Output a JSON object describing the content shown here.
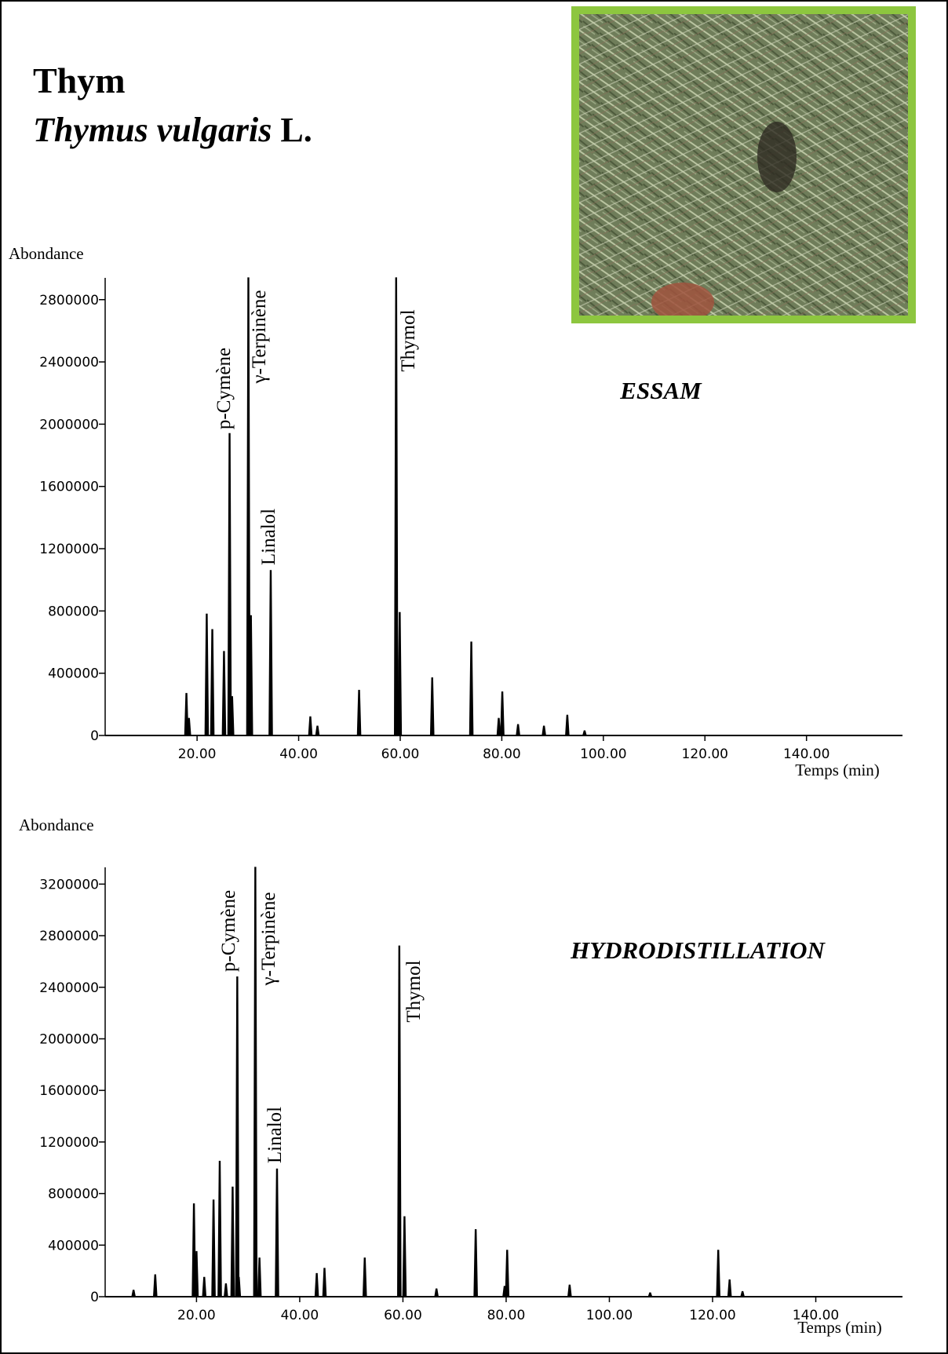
{
  "header": {
    "title": "Thym",
    "species": "Thymus vulgaris",
    "authority": "L."
  },
  "chart_data": [
    {
      "type": "peak",
      "method": "ESSAM",
      "y_label": "Abondance",
      "x_label": "Temps (min)",
      "color": "#000000",
      "annotations": [
        "p-Cymène",
        "γ-Terpinène",
        "Linalol",
        "Thymol"
      ],
      "x": [
        17.9,
        18.4,
        21.9,
        23.0,
        25.3,
        26.4,
        26.9,
        30.1,
        30.6,
        34.5,
        42.3,
        43.7,
        51.9,
        59.2,
        59.9,
        66.3,
        74.0,
        79.4,
        80.1,
        83.2,
        88.3,
        92.9,
        96.3
      ],
      "values": [
        270000,
        110000,
        780000,
        680000,
        540000,
        1940000,
        250000,
        2940000,
        770000,
        1060000,
        120000,
        60000,
        290000,
        2940000,
        790000,
        370000,
        600000,
        110000,
        280000,
        70000,
        60000,
        130000,
        30000
      ],
      "xlim": [
        1.9,
        158.9
      ],
      "ylim": [
        0,
        2940000
      ],
      "xticks": [
        {
          "value": 20,
          "label": "20.00"
        },
        {
          "value": 40,
          "label": "40.00"
        },
        {
          "value": 60,
          "label": "60.00"
        },
        {
          "value": 80,
          "label": "80.00"
        },
        {
          "value": 100,
          "label": "100.00"
        },
        {
          "value": 120,
          "label": "120.00"
        },
        {
          "value": 140,
          "label": "140.00"
        }
      ],
      "yticks": [
        0,
        400000,
        800000,
        1200000,
        1600000,
        2000000,
        2400000,
        2800000
      ]
    },
    {
      "type": "peak",
      "method": "HYDRODISTILLATION",
      "y_label": "Abondance",
      "x_label": "Temps (min)",
      "color": "#000000",
      "annotations": [
        "p-Cymène",
        "γ-Terpinène",
        "Linalol",
        "Thymol"
      ],
      "x": [
        7.8,
        12.0,
        19.5,
        20.0,
        21.5,
        23.3,
        24.5,
        25.7,
        27.0,
        27.9,
        28.2,
        31.4,
        32.2,
        35.6,
        43.3,
        44.8,
        52.6,
        59.3,
        60.3,
        66.5,
        74.1,
        79.7,
        80.2,
        92.3,
        107.9,
        121.1,
        123.3,
        125.8
      ],
      "values": [
        50000,
        170000,
        720000,
        350000,
        150000,
        750000,
        1050000,
        100000,
        850000,
        2480000,
        150000,
        3330000,
        300000,
        990000,
        180000,
        220000,
        300000,
        2720000,
        620000,
        60000,
        520000,
        80000,
        360000,
        90000,
        30000,
        360000,
        130000,
        40000
      ],
      "xlim": [
        2.3,
        156.8
      ],
      "ylim": [
        0,
        3330000
      ],
      "xticks": [
        {
          "value": 20,
          "label": "20.00"
        },
        {
          "value": 40,
          "label": "40.00"
        },
        {
          "value": 60,
          "label": "60.00"
        },
        {
          "value": 80,
          "label": "80.00"
        },
        {
          "value": 100,
          "label": "100.00"
        },
        {
          "value": 120,
          "label": "120.00"
        },
        {
          "value": 140,
          "label": "140.00"
        }
      ],
      "yticks": [
        0,
        400000,
        800000,
        1200000,
        1600000,
        2000000,
        2400000,
        2800000,
        3200000
      ]
    }
  ]
}
